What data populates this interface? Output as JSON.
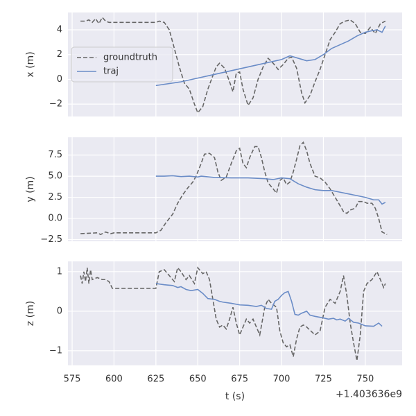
{
  "chart_data": [
    {
      "type": "line",
      "ylabel": "x (m)",
      "ylim": [
        -3,
        5.4
      ],
      "yticks": [
        {
          "value": -2,
          "label": "−2"
        },
        0,
        2,
        4
      ],
      "legend": "center left",
      "grid": true,
      "series": [
        {
          "name": "groundtruth",
          "color": "#666666",
          "linestyle": "dashed",
          "x": [
            580,
            583,
            585,
            587,
            589,
            591,
            593,
            595,
            597,
            600,
            610,
            625,
            627,
            630,
            633,
            636,
            639,
            642,
            645,
            648,
            650,
            653,
            656,
            659,
            661,
            663,
            666,
            669,
            671,
            673,
            675,
            677,
            680,
            683,
            686,
            689,
            692,
            695,
            698,
            701,
            704,
            706,
            709,
            712,
            714,
            717,
            720,
            723,
            726,
            729,
            732,
            735,
            738,
            741,
            744,
            747,
            750,
            753,
            756,
            759,
            762
          ],
          "values": [
            4.7,
            4.7,
            4.8,
            4.6,
            4.9,
            4.5,
            5.0,
            4.7,
            4.6,
            4.6,
            4.6,
            4.6,
            4.7,
            4.6,
            4.0,
            2.5,
            1.0,
            -0.3,
            -0.8,
            -2.0,
            -2.7,
            -2.2,
            -0.8,
            0.3,
            1.0,
            1.3,
            0.9,
            -0.2,
            -1.0,
            0.5,
            0.6,
            -0.8,
            -2.1,
            -1.5,
            0.0,
            1.0,
            1.7,
            1.3,
            0.8,
            1.2,
            1.7,
            1.8,
            0.9,
            -1.1,
            -1.9,
            -1.3,
            -0.2,
            0.8,
            2.0,
            3.2,
            3.8,
            4.5,
            4.7,
            4.8,
            4.5,
            3.8,
            3.7,
            4.2,
            3.7,
            4.5,
            4.7
          ]
        },
        {
          "name": "traj",
          "color": "#6a8cc7",
          "linestyle": "solid",
          "x": [
            625,
            640,
            650,
            660,
            670,
            680,
            690,
            700,
            705,
            710,
            715,
            720,
            725,
            730,
            735,
            740,
            745,
            750,
            753,
            757,
            760,
            762
          ],
          "values": [
            -0.5,
            -0.2,
            0.1,
            0.4,
            0.7,
            1.0,
            1.3,
            1.6,
            1.9,
            1.7,
            1.5,
            1.6,
            2.0,
            2.5,
            2.8,
            3.1,
            3.5,
            3.8,
            3.9,
            4.0,
            3.8,
            4.3
          ]
        }
      ]
    },
    {
      "type": "line",
      "ylabel": "y (m)",
      "ylim": [
        -2.7,
        9.6
      ],
      "yticks": [
        {
          "value": -2.5,
          "label": "−2.5"
        },
        {
          "value": 0,
          "label": "0.0"
        },
        2.5,
        {
          "value": 5,
          "label": "5.0"
        },
        7.5
      ],
      "grid": true,
      "series": [
        {
          "name": "groundtruth",
          "color": "#666666",
          "linestyle": "dashed",
          "x": [
            580,
            590,
            592,
            595,
            598,
            600,
            625,
            628,
            631,
            635,
            638,
            641,
            644,
            647,
            649,
            652,
            654,
            657,
            660,
            662,
            664,
            667,
            670,
            673,
            675,
            677,
            679,
            681,
            684,
            686,
            688,
            690,
            692,
            695,
            697,
            699,
            701,
            703,
            705,
            707,
            709,
            711,
            713,
            715,
            717,
            720,
            723,
            726,
            729,
            732,
            735,
            737,
            739,
            741,
            744,
            746,
            749,
            751,
            754,
            756,
            758,
            760,
            763
          ],
          "values": [
            -1.8,
            -1.7,
            -1.9,
            -1.6,
            -1.8,
            -1.7,
            -1.7,
            -1.4,
            -0.5,
            0.5,
            1.8,
            2.8,
            3.6,
            4.3,
            5.0,
            6.5,
            7.6,
            7.7,
            7.2,
            5.5,
            4.5,
            4.9,
            6.5,
            8.0,
            8.3,
            6.5,
            6.0,
            7.2,
            8.5,
            8.5,
            7.2,
            5.5,
            4.2,
            3.5,
            3.0,
            4.5,
            4.8,
            4.0,
            4.3,
            5.5,
            7.0,
            8.6,
            9.0,
            8.0,
            6.5,
            5.0,
            4.8,
            4.3,
            3.5,
            2.5,
            1.5,
            0.8,
            0.6,
            1.0,
            1.2,
            2.0,
            2.0,
            1.8,
            1.8,
            1.2,
            0.0,
            -1.6,
            -1.9
          ]
        },
        {
          "name": "traj",
          "color": "#6a8cc7",
          "linestyle": "solid",
          "x": [
            625,
            630,
            635,
            640,
            645,
            650,
            652,
            660,
            670,
            680,
            690,
            695,
            700,
            705,
            710,
            715,
            720,
            725,
            730,
            735,
            740,
            745,
            750,
            755,
            758,
            760,
            762
          ],
          "values": [
            5.0,
            5.0,
            5.05,
            4.95,
            5.0,
            4.9,
            5.0,
            4.85,
            4.8,
            4.8,
            4.7,
            4.6,
            4.8,
            4.7,
            4.1,
            3.7,
            3.4,
            3.3,
            3.3,
            3.1,
            2.9,
            2.7,
            2.5,
            2.2,
            2.2,
            1.7,
            1.9
          ]
        }
      ]
    },
    {
      "type": "line",
      "ylabel": "z (m)",
      "xlabel": "t (s)",
      "x_offset_text": "+1.403636e9",
      "xlim": [
        572.5,
        772
      ],
      "xticks": [
        575,
        600,
        625,
        650,
        675,
        700,
        725,
        750
      ],
      "ylim": [
        -1.37,
        1.26
      ],
      "yticks": [
        {
          "value": -1,
          "label": "−1"
        },
        0,
        1
      ],
      "grid": true,
      "series": [
        {
          "name": "groundtruth",
          "color": "#666666",
          "linestyle": "dashed",
          "x": [
            580,
            581,
            582,
            583,
            584,
            585,
            586,
            587,
            590,
            593,
            595,
            597,
            599,
            610,
            625,
            627,
            630,
            633,
            636,
            638,
            640,
            643,
            645,
            648,
            650,
            653,
            655,
            657,
            659,
            661,
            663,
            665,
            667,
            669,
            671,
            673,
            675,
            677,
            679,
            681,
            683,
            685,
            687,
            690,
            692,
            694,
            697,
            699,
            701,
            703,
            705,
            707,
            709,
            711,
            713,
            715,
            720,
            723,
            726,
            729,
            732,
            735,
            737,
            739,
            741,
            743,
            745,
            747,
            749,
            751,
            754,
            757,
            759,
            761,
            762
          ],
          "values": [
            0.9,
            0.7,
            1.0,
            0.75,
            1.1,
            0.7,
            1.05,
            0.8,
            0.85,
            0.8,
            0.8,
            0.75,
            0.58,
            0.58,
            0.58,
            1.0,
            1.05,
            0.9,
            0.75,
            1.1,
            1.0,
            0.8,
            0.9,
            0.7,
            1.1,
            0.95,
            1.0,
            0.8,
            0.3,
            -0.2,
            -0.4,
            -0.35,
            -0.45,
            -0.2,
            0.1,
            -0.3,
            -0.6,
            -0.4,
            -0.2,
            -0.3,
            -0.2,
            -0.4,
            -0.6,
            0.1,
            0.3,
            0.2,
            0.1,
            -0.5,
            -0.8,
            -0.9,
            -0.85,
            -1.15,
            -0.7,
            -0.4,
            -0.35,
            -0.4,
            -0.6,
            -0.5,
            0.1,
            0.3,
            0.2,
            0.5,
            0.9,
            0.4,
            -0.3,
            -0.8,
            -1.25,
            -0.6,
            0.5,
            0.7,
            0.8,
            1.0,
            0.8,
            0.6,
            0.7
          ]
        },
        {
          "name": "traj",
          "color": "#6a8cc7",
          "linestyle": "solid",
          "x": [
            625,
            630,
            635,
            638,
            640,
            643,
            646,
            650,
            653,
            656,
            660,
            663,
            665,
            670,
            675,
            680,
            685,
            688,
            691,
            694,
            696,
            698,
            700,
            702,
            704,
            706,
            708,
            710,
            712,
            715,
            717,
            720,
            725,
            728,
            731,
            733,
            735,
            738,
            740,
            743,
            746,
            750,
            755,
            758,
            760
          ],
          "values": [
            0.7,
            0.67,
            0.65,
            0.6,
            0.62,
            0.55,
            0.52,
            0.55,
            0.45,
            0.32,
            0.3,
            0.25,
            0.23,
            0.2,
            0.16,
            0.15,
            0.12,
            0.15,
            0.07,
            0.05,
            0.25,
            0.3,
            0.4,
            0.47,
            0.5,
            0.25,
            -0.08,
            -0.1,
            -0.05,
            0.0,
            -0.1,
            -0.13,
            -0.17,
            -0.2,
            -0.18,
            -0.22,
            -0.2,
            -0.25,
            -0.18,
            -0.28,
            -0.3,
            -0.37,
            -0.38,
            -0.3,
            -0.38
          ]
        }
      ]
    }
  ]
}
